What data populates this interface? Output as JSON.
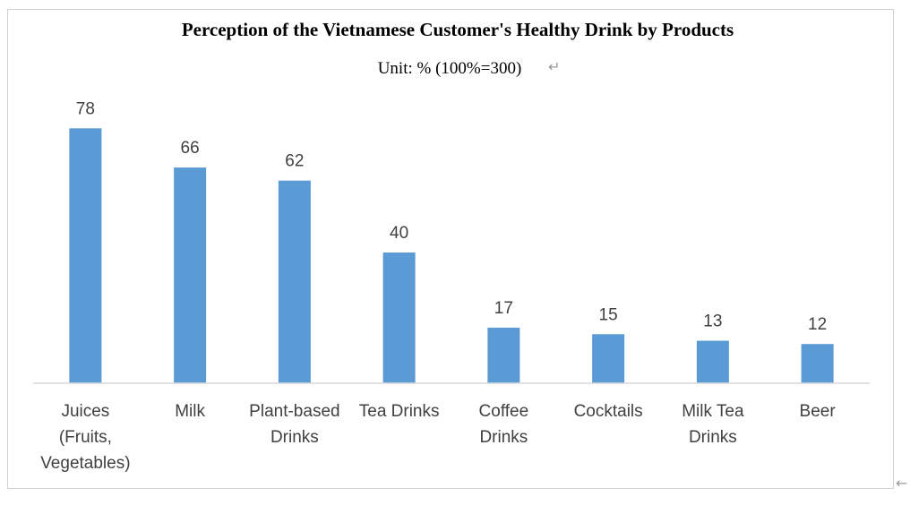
{
  "chart_data": {
    "type": "bar",
    "title": "Perception of the Vietnamese Customer's Healthy Drink by Products",
    "subtitle": "Unit: % (100%=300)",
    "subtitle_mark": "↵",
    "trailing_mark": "←",
    "categories": [
      [
        "Juices",
        "(Fruits,",
        "Vegetables)"
      ],
      [
        "Milk"
      ],
      [
        "Plant-based",
        "Drinks"
      ],
      [
        "Tea Drinks"
      ],
      [
        "Coffee",
        "Drinks"
      ],
      [
        "Cocktails"
      ],
      [
        "Milk Tea",
        "Drinks"
      ],
      [
        "Beer"
      ]
    ],
    "values": [
      78,
      66,
      62,
      40,
      17,
      15,
      13,
      12
    ],
    "xlabel": "",
    "ylabel": "",
    "ylim": [
      0,
      80
    ],
    "data_labels": true,
    "legend": "none",
    "grid": false,
    "colors": {
      "bar": "#5b9bd5",
      "axis": "#d9d9d9",
      "text": "#404040"
    }
  }
}
